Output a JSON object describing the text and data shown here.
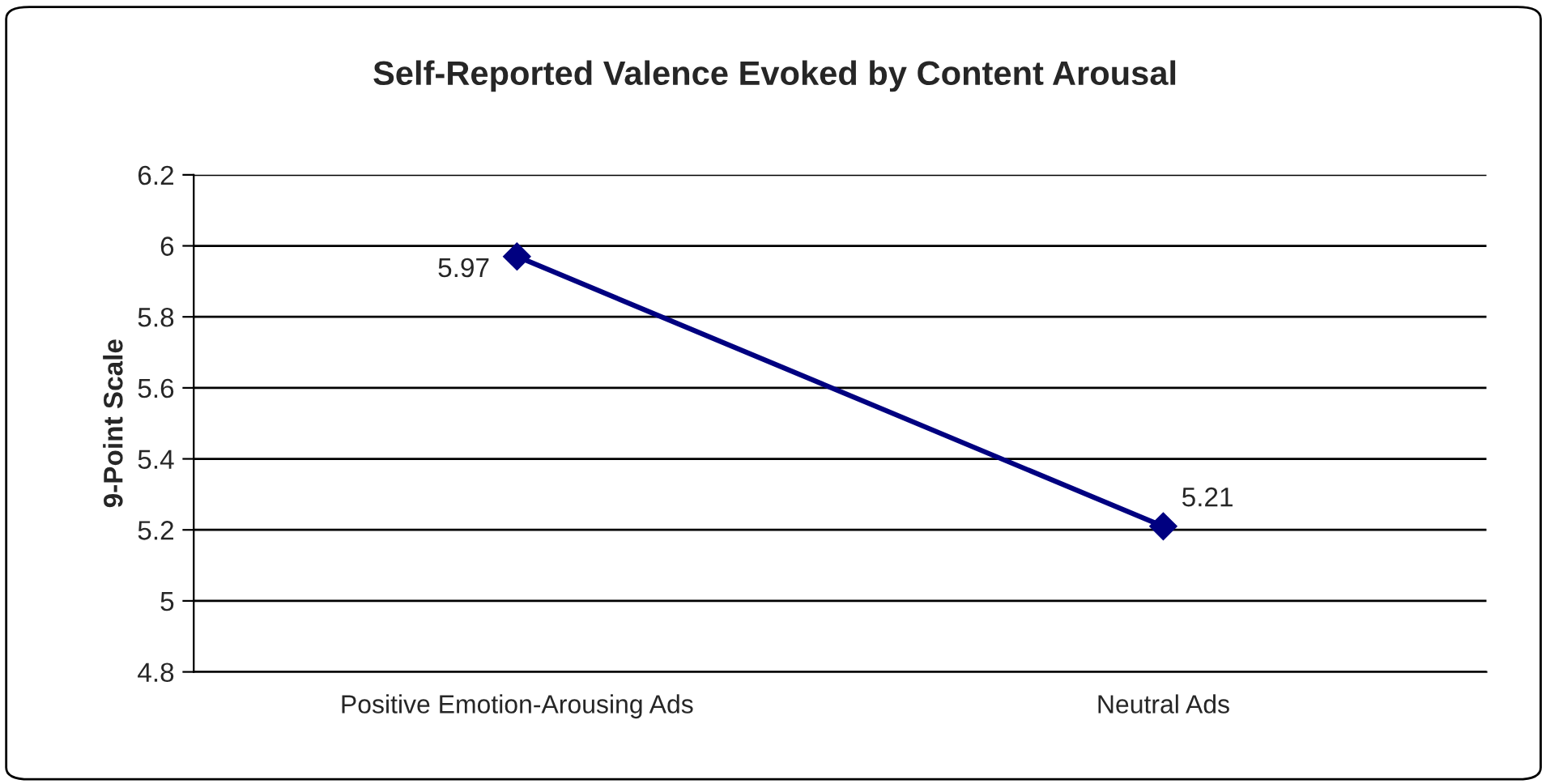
{
  "chart_data": {
    "type": "line",
    "title": "Self-Reported Valence Evoked by Content Arousal",
    "ylabel": "9-Point Scale",
    "categories": [
      "Positive Emotion-Arousing Ads",
      "Neutral Ads"
    ],
    "series": [
      {
        "color": "#000080",
        "values": [
          5.97,
          5.21
        ]
      }
    ],
    "ylim": [
      4.8,
      6.2
    ],
    "yticks": [
      4.8,
      5,
      5.2,
      5.4,
      5.6,
      5.8,
      6,
      6.2
    ],
    "grid": "y",
    "marker": "diamond",
    "line_style": "solid",
    "data_labels": true,
    "legend": false
  }
}
